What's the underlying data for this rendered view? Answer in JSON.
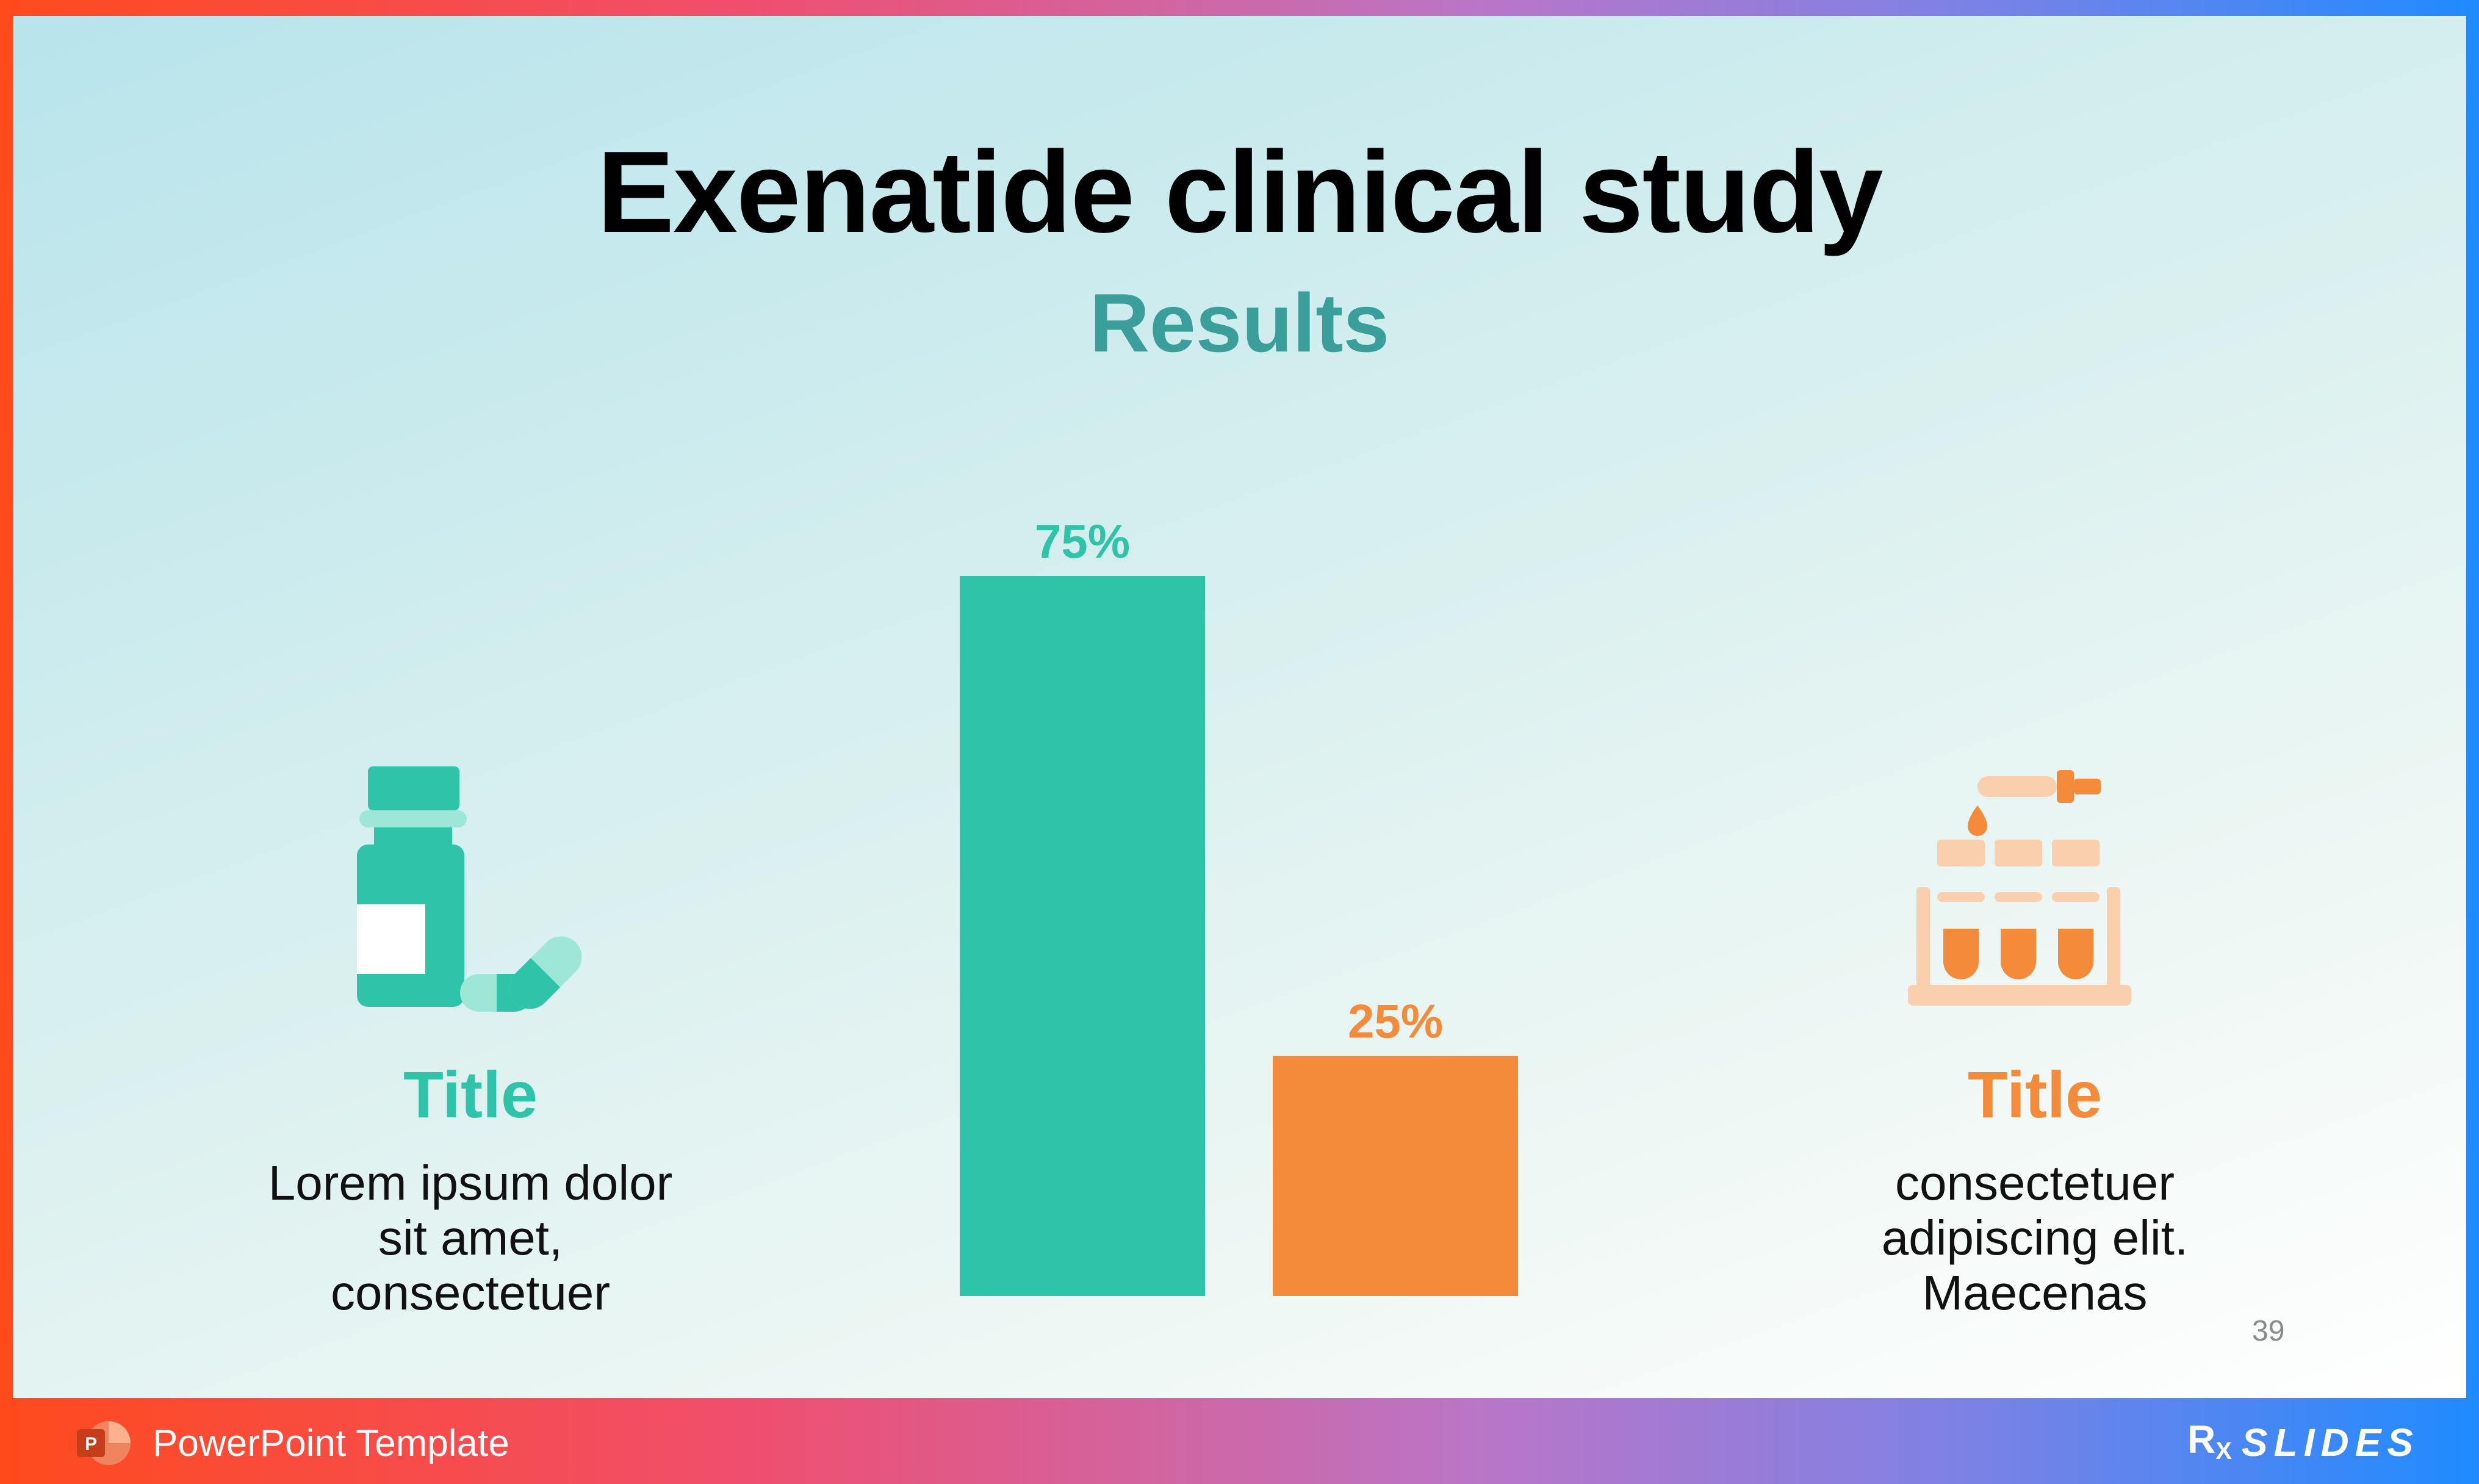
{
  "slide": {
    "title": "Exenatide clinical study",
    "subtitle": "Results",
    "page_number": "39"
  },
  "left_panel": {
    "icon": "medicine-bottle-icon",
    "title": "Title",
    "body_lines": [
      "Lorem ipsum dolor",
      "sit amet,",
      "consectetuer"
    ]
  },
  "right_panel": {
    "icon": "test-tubes-icon",
    "title": "Title",
    "body_lines": [
      "consectetuer",
      "adipiscing elit.",
      "Maecenas"
    ]
  },
  "chart_data": {
    "type": "bar",
    "categories": [
      "",
      ""
    ],
    "values": [
      75,
      25
    ],
    "labels": [
      "75%",
      "25%"
    ],
    "colors": [
      "#2fc4a9",
      "#f38b3a"
    ],
    "ylim": [
      0,
      75
    ],
    "title": "",
    "xlabel": "",
    "ylabel": "",
    "grid": false
  },
  "colors": {
    "teal": "#2fc4a9",
    "orange": "#f38b3a",
    "subtitle": "#3a9e9a"
  },
  "footer": {
    "app_label": "PowerPoint Template",
    "app_icon": "powerpoint-icon",
    "brand_rx": "R",
    "brand_rx_sub": "X",
    "brand_name": "SLIDES"
  }
}
